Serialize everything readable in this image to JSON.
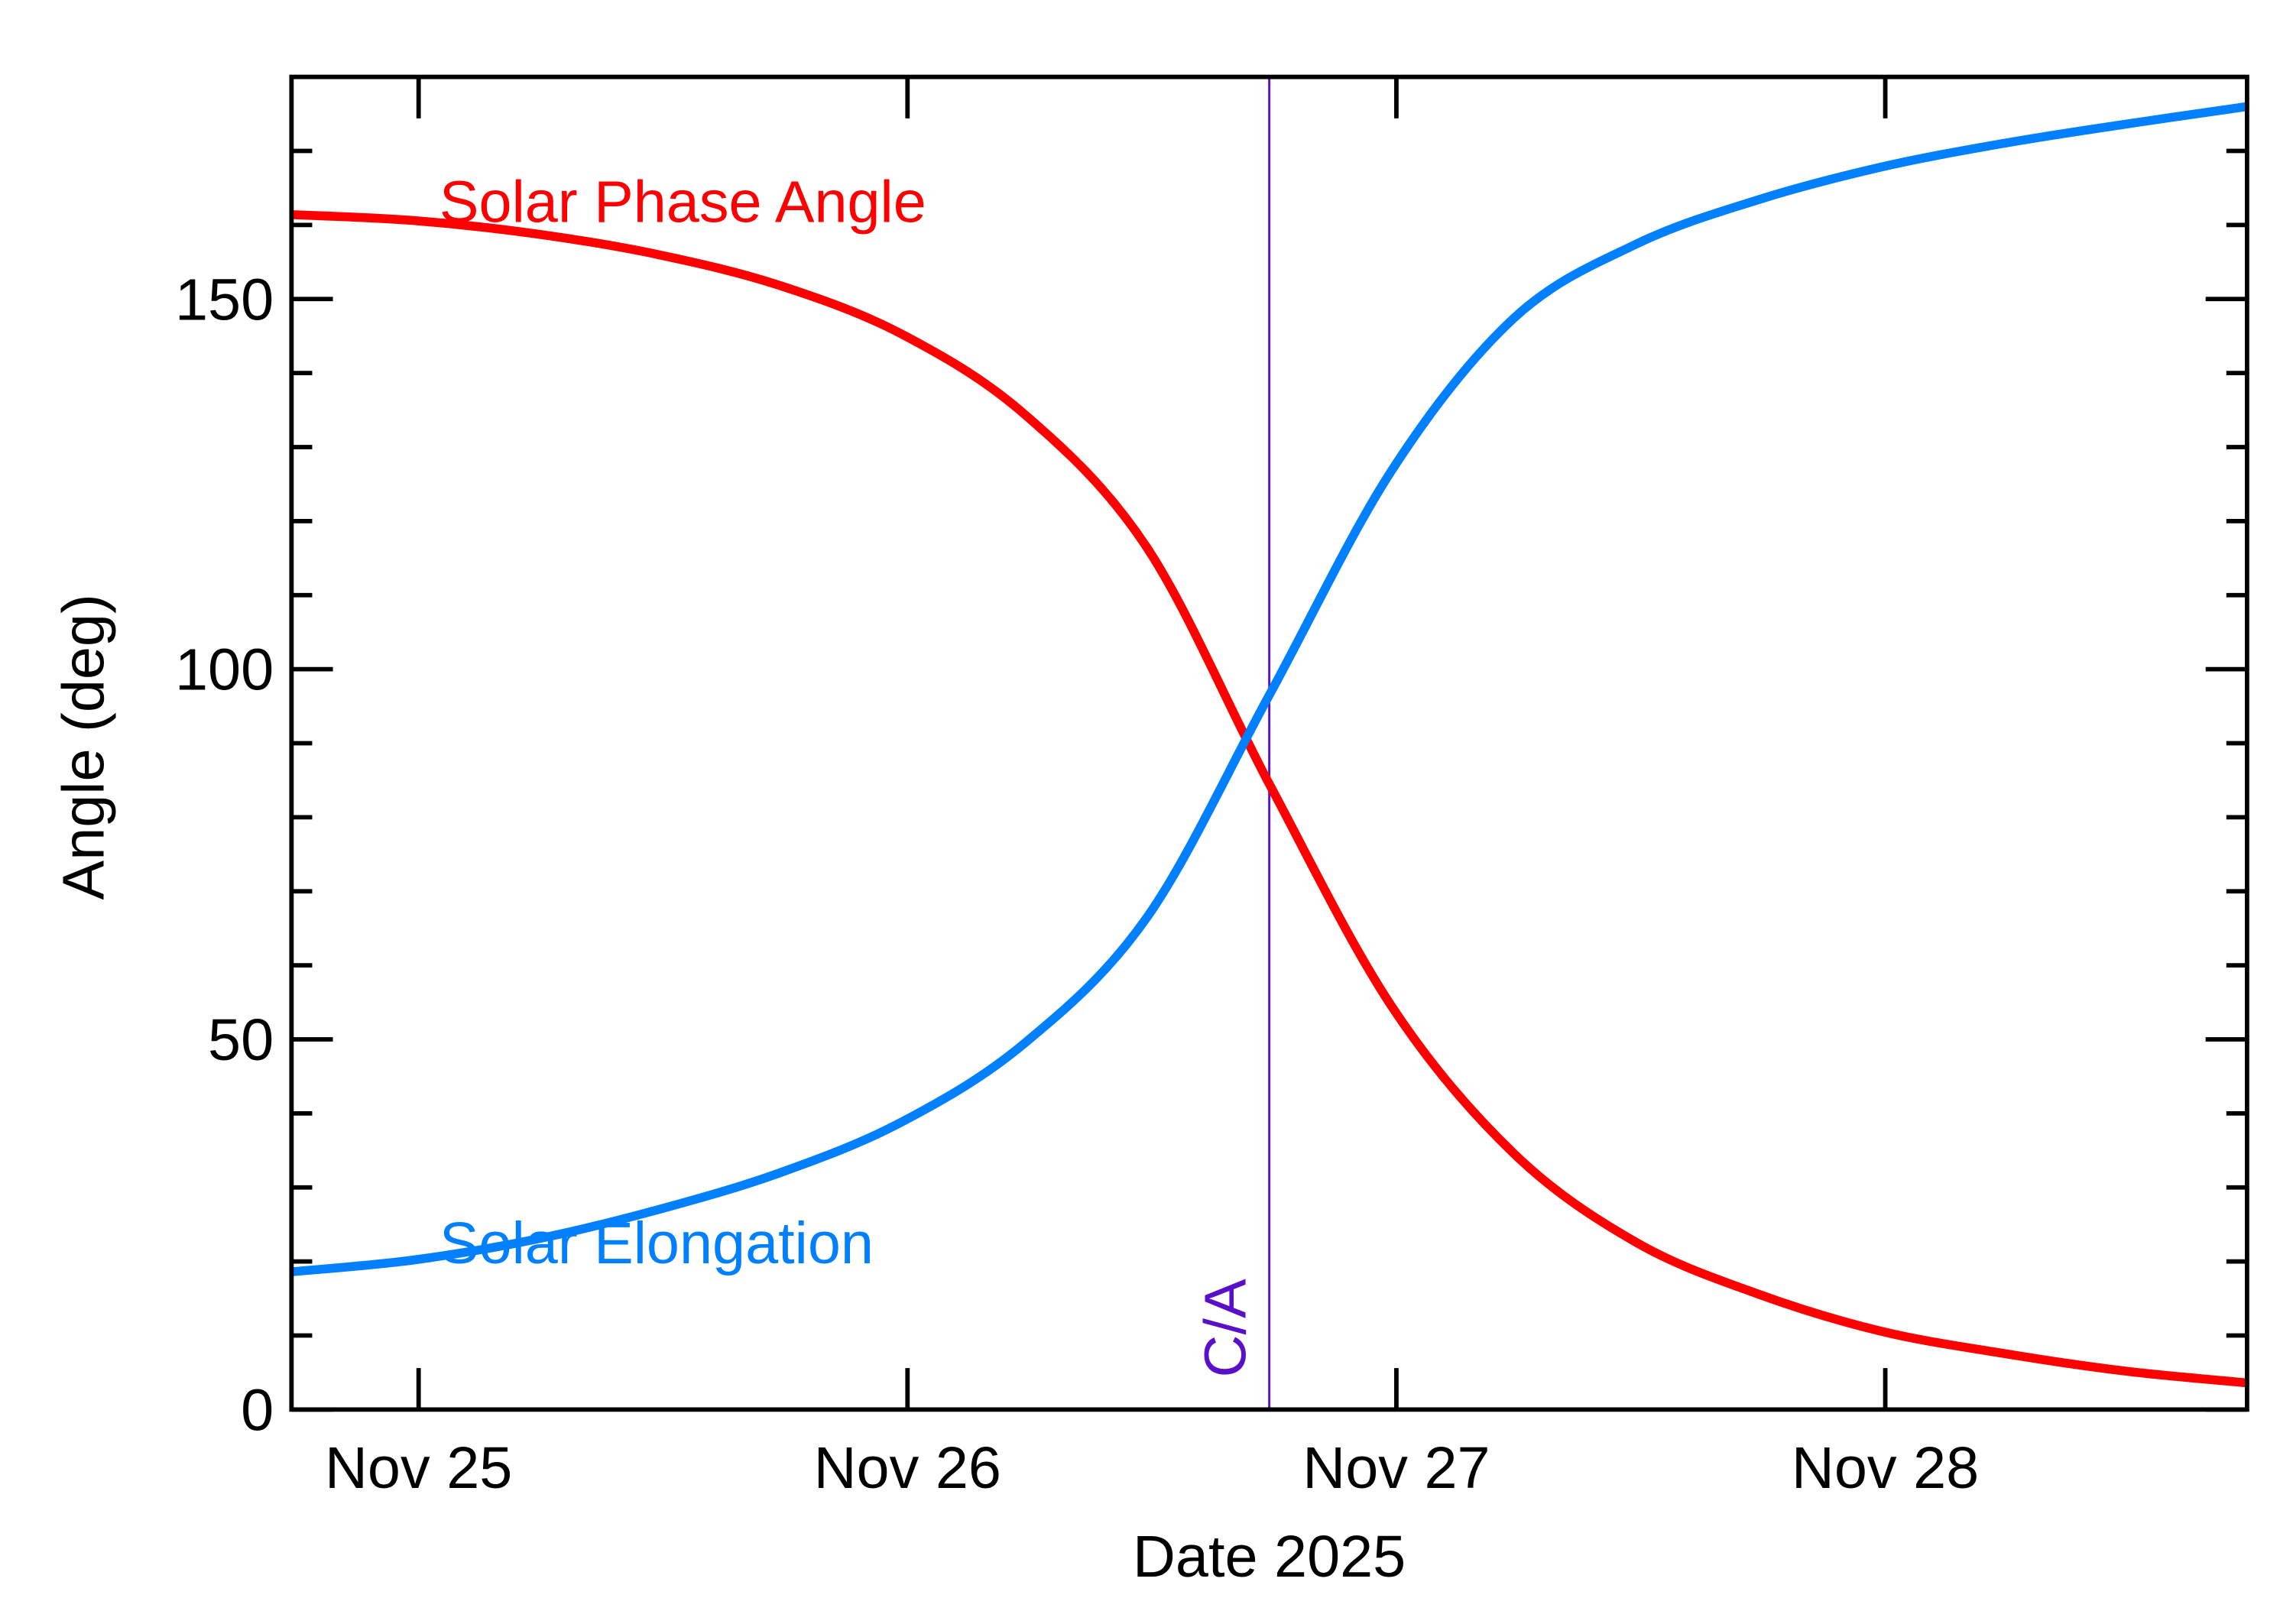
{
  "chart_data": {
    "type": "line",
    "x_label": "Date 2025",
    "y_label": "Angle (deg)",
    "x": [
      24.74,
      24.99,
      25.24,
      25.49,
      25.74,
      25.99,
      26.24,
      26.49,
      26.74,
      26.99,
      27.24,
      27.49,
      27.74,
      27.99,
      28.24,
      28.49,
      28.74
    ],
    "series": [
      {
        "name": "Solar Phase Angle",
        "color": "#ff0000",
        "values": [
          161.4,
          160.6,
          158.8,
          156.0,
          151.8,
          145.2,
          134.4,
          116.4,
          84.5,
          54.5,
          34.6,
          22.6,
          15.6,
          10.6,
          7.6,
          5.2,
          3.6
        ]
      },
      {
        "name": "Solar Elongation",
        "color": "#0080ff",
        "values": [
          18.6,
          20.2,
          23.0,
          27.0,
          32.0,
          38.9,
          49.5,
          66.5,
          96.5,
          126.8,
          147.4,
          157.4,
          163.4,
          167.8,
          171.0,
          173.6,
          176.0
        ]
      }
    ],
    "xlim": [
      24.74,
      28.74
    ],
    "xticks": [
      {
        "value": 25,
        "label": "Nov 25"
      },
      {
        "value": 26,
        "label": "Nov 26"
      },
      {
        "value": 27,
        "label": "Nov 27"
      },
      {
        "value": 28,
        "label": "Nov 28"
      }
    ],
    "ylim": [
      0,
      180
    ],
    "yticks": [
      0,
      50,
      100,
      150
    ],
    "yminorticks": [
      10,
      20,
      30,
      40,
      60,
      70,
      80,
      90,
      110,
      120,
      130,
      140,
      160,
      170
    ],
    "closest_approach": {
      "x": 26.74,
      "label": "C/A",
      "color": "#5a10c8"
    }
  }
}
